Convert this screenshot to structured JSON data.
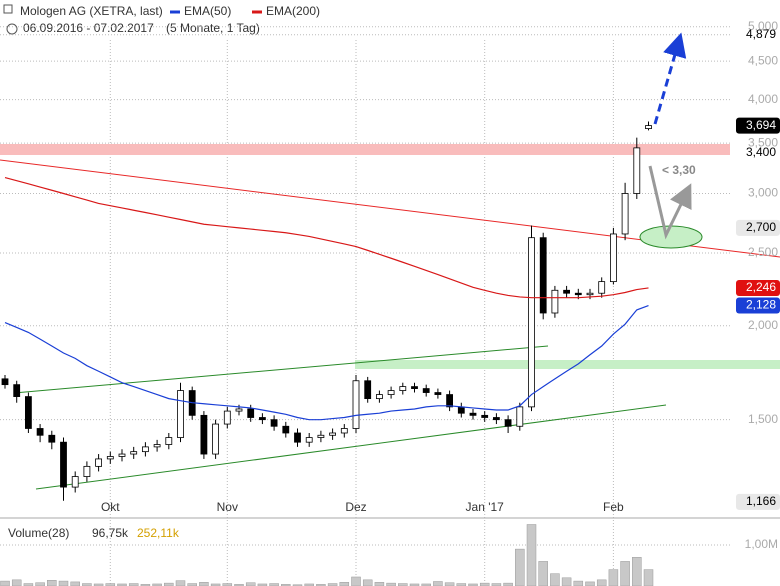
{
  "chart_data": {
    "type": "candlestick",
    "title": "Mologen AG (XETRA, last)",
    "date_range": "06.09.2016 - 07.02.2017",
    "period": "(5 Monate, 1 Tag)",
    "categories": [
      null,
      null,
      null,
      null,
      null,
      null,
      null,
      null,
      null,
      "Okt",
      null,
      null,
      null,
      null,
      null,
      null,
      null,
      null,
      null,
      "Nov",
      null,
      null,
      null,
      null,
      null,
      null,
      null,
      null,
      null,
      null,
      "Dez",
      null,
      null,
      null,
      null,
      null,
      null,
      null,
      null,
      null,
      null,
      "Jan '17",
      null,
      null,
      null,
      null,
      null,
      null,
      null,
      null,
      null,
      null,
      "Feb",
      null,
      null,
      null
    ],
    "open": [
      1700,
      1670,
      1610,
      1460,
      1430,
      1400,
      1220,
      1260,
      1300,
      1330,
      1340,
      1350,
      1360,
      1380,
      1390,
      1420,
      1640,
      1520,
      1350,
      1480,
      1540,
      1550,
      1510,
      1500,
      1470,
      1440,
      1400,
      1420,
      1430,
      1440,
      1460,
      1690,
      1600,
      1620,
      1640,
      1660,
      1650,
      1630,
      1620,
      1560,
      1530,
      1520,
      1510,
      1500,
      1470,
      1560,
      2620,
      2080,
      2230,
      2210,
      2200,
      2210,
      2290,
      2650,
      3000,
      3660
    ],
    "high": [
      1720,
      1690,
      1630,
      1480,
      1450,
      1420,
      1280,
      1320,
      1350,
      1360,
      1370,
      1380,
      1400,
      1410,
      1440,
      1680,
      1660,
      1540,
      1500,
      1560,
      1570,
      1570,
      1530,
      1520,
      1490,
      1460,
      1440,
      1450,
      1460,
      1480,
      1720,
      1710,
      1640,
      1660,
      1680,
      1680,
      1670,
      1650,
      1640,
      1580,
      1550,
      1540,
      1530,
      1520,
      1580,
      2720,
      2660,
      2260,
      2260,
      2240,
      2240,
      2320,
      2700,
      3100,
      3560,
      3740
    ],
    "low": [
      1650,
      1580,
      1440,
      1400,
      1370,
      1170,
      1200,
      1240,
      1280,
      1310,
      1320,
      1330,
      1340,
      1360,
      1370,
      1400,
      1500,
      1330,
      1330,
      1460,
      1520,
      1490,
      1480,
      1450,
      1420,
      1380,
      1380,
      1400,
      1410,
      1420,
      1440,
      1580,
      1580,
      1600,
      1620,
      1630,
      1610,
      1600,
      1540,
      1510,
      1500,
      1490,
      1480,
      1440,
      1450,
      1540,
      2040,
      2050,
      2180,
      2170,
      2170,
      2180,
      2270,
      2600,
      2950,
      3640
    ],
    "close": [
      1670,
      1610,
      1460,
      1430,
      1400,
      1220,
      1260,
      1300,
      1330,
      1340,
      1350,
      1360,
      1380,
      1390,
      1420,
      1640,
      1520,
      1350,
      1480,
      1540,
      1550,
      1510,
      1500,
      1470,
      1440,
      1400,
      1420,
      1430,
      1440,
      1460,
      1690,
      1600,
      1620,
      1640,
      1660,
      1650,
      1630,
      1620,
      1560,
      1530,
      1520,
      1510,
      1500,
      1470,
      1560,
      2620,
      2080,
      2230,
      2210,
      2200,
      2210,
      2290,
      2650,
      3000,
      3450,
      3694
    ],
    "series": [
      {
        "name": "EMA(50)",
        "color": "#1a3fd6",
        "values": [
          2020,
          1990,
          1960,
          1920,
          1880,
          1840,
          1810,
          1770,
          1740,
          1710,
          1680,
          1660,
          1640,
          1620,
          1600,
          1590,
          1580,
          1575,
          1570,
          1565,
          1560,
          1555,
          1545,
          1535,
          1525,
          1510,
          1500,
          1500,
          1505,
          1510,
          1520,
          1525,
          1530,
          1540,
          1545,
          1550,
          1560,
          1565,
          1565,
          1560,
          1555,
          1550,
          1545,
          1545,
          1565,
          1620,
          1660,
          1700,
          1740,
          1780,
          1830,
          1880,
          1950,
          2010,
          2100,
          2128
        ]
      },
      {
        "name": "EMA(200)",
        "color": "#d81818",
        "values": [
          3150,
          3120,
          3090,
          3060,
          3030,
          3000,
          2970,
          2940,
          2910,
          2890,
          2870,
          2850,
          2830,
          2810,
          2790,
          2770,
          2750,
          2730,
          2720,
          2710,
          2700,
          2690,
          2680,
          2670,
          2660,
          2645,
          2630,
          2610,
          2590,
          2570,
          2550,
          2520,
          2490,
          2460,
          2430,
          2400,
          2370,
          2340,
          2310,
          2280,
          2250,
          2230,
          2210,
          2195,
          2185,
          2180,
          2180,
          2180,
          2180,
          2180,
          2185,
          2190,
          2200,
          2215,
          2235,
          2246
        ]
      }
    ],
    "ylim": [
      1120,
      5200
    ],
    "log_scale": true,
    "grid": true,
    "yticks": [
      {
        "value": 1500,
        "label": "1,500"
      },
      {
        "value": 2000,
        "label": "2,000"
      },
      {
        "value": 2500,
        "label": "2,500"
      },
      {
        "value": 3000,
        "label": "3,000"
      },
      {
        "value": 3500,
        "label": "3,500"
      },
      {
        "value": 4000,
        "label": "4,000"
      },
      {
        "value": 4500,
        "label": "4,500"
      },
      {
        "value": 5000,
        "label": "5,000"
      }
    ],
    "markers": [
      {
        "value": 4879,
        "label": "4,879",
        "color": "none"
      },
      {
        "value": 3694,
        "label": "3,694",
        "color": "#000000"
      },
      {
        "value": 3400,
        "label": "3,400",
        "color": "none"
      },
      {
        "value": 2700,
        "label": "2,700",
        "color": "#e8e8e8"
      },
      {
        "value": 2246,
        "label": "2,246",
        "color": "#e01010"
      },
      {
        "value": 2128,
        "label": "2,128",
        "color": "#1a3fd6"
      },
      {
        "value": 1166,
        "label": "1,166",
        "color": "#e8e8e8"
      }
    ],
    "annotation": "< 3,30",
    "volume": {
      "label": "Volume(28)",
      "avg_label": "96,75k",
      "avg2_label": "252,11k",
      "color": "#c8c8c8",
      "ylim": [
        0,
        1610000
      ],
      "yticks": [
        {
          "value": 1000000,
          "label": "1,00M"
        }
      ],
      "values": [
        120000,
        150000,
        60000,
        80000,
        140000,
        120000,
        100000,
        60000,
        50000,
        60000,
        50000,
        60000,
        40000,
        50000,
        70000,
        130000,
        60000,
        90000,
        50000,
        60000,
        40000,
        80000,
        50000,
        60000,
        40000,
        30000,
        50000,
        40000,
        60000,
        90000,
        220000,
        150000,
        90000,
        70000,
        60000,
        50000,
        50000,
        110000,
        80000,
        60000,
        50000,
        70000,
        60000,
        70000,
        900000,
        1500000,
        600000,
        300000,
        200000,
        120000,
        100000,
        150000,
        400000,
        600000,
        700000,
        400000
      ]
    }
  }
}
